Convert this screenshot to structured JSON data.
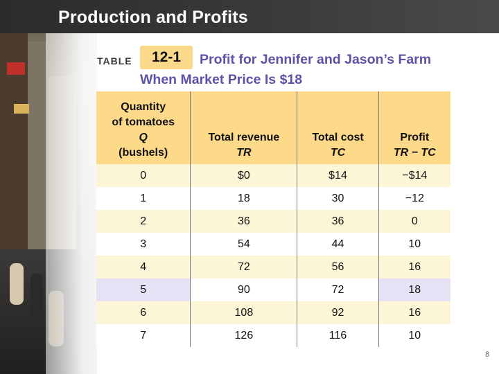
{
  "slide": {
    "title": "Production and Profits",
    "page_number": "8"
  },
  "table": {
    "label": "TABLE",
    "number": "12-1",
    "caption": "Profit for Jennifer and Jason’s Farm When Market Price Is $18",
    "columns": [
      {
        "line1": "Quantity",
        "line2": "of tomatoes",
        "line3": "Q",
        "line4": "(bushels)"
      },
      {
        "line1": "Total revenue",
        "line2": "TR"
      },
      {
        "line1": "Total cost",
        "line2": "TC"
      },
      {
        "line1": "Profit",
        "line2": "TR − TC"
      }
    ],
    "rows": [
      {
        "q": "0",
        "tr": "$0",
        "tc": "$14",
        "profit": "−$14"
      },
      {
        "q": "1",
        "tr": "18",
        "tc": "30",
        "profit": "−12"
      },
      {
        "q": "2",
        "tr": "36",
        "tc": "36",
        "profit": "0"
      },
      {
        "q": "3",
        "tr": "54",
        "tc": "44",
        "profit": "10"
      },
      {
        "q": "4",
        "tr": "72",
        "tc": "56",
        "profit": "16"
      },
      {
        "q": "5",
        "tr": "90",
        "tc": "72",
        "profit": "18"
      },
      {
        "q": "6",
        "tr": "108",
        "tc": "92",
        "profit": "16"
      },
      {
        "q": "7",
        "tr": "126",
        "tc": "116",
        "profit": "10"
      }
    ]
  },
  "colors": {
    "header_fill": "#fdd98a",
    "caption_text": "#5c53a8",
    "highlight_row": "#e6e1f4"
  }
}
